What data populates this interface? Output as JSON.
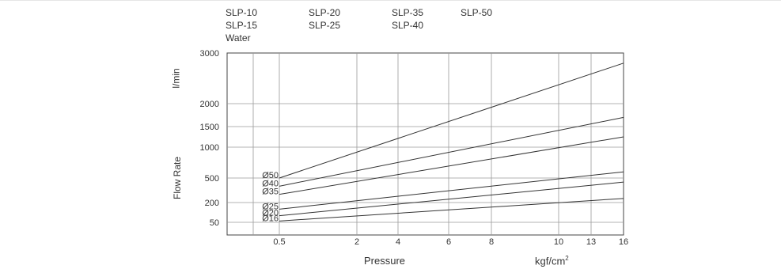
{
  "legend": {
    "columns": [
      [
        "SLP-10",
        "SLP-15",
        "Water"
      ],
      [
        "SLP-20",
        "SLP-25"
      ],
      [
        "SLP-35",
        "SLP-40"
      ],
      [
        "SLP-50"
      ]
    ]
  },
  "chart_data": {
    "type": "line",
    "xlabel": "Pressure",
    "xunit": "kgf/cm",
    "xunit_sup": "2",
    "ylabel_top": "l/min",
    "ylabel": "Flow Rate",
    "x_ticks": [
      "0.5",
      "2",
      "4",
      "6",
      "8",
      "10",
      "13",
      "16"
    ],
    "y_ticks": [
      "3000",
      "2000",
      "1500",
      "1000",
      "500",
      "200",
      "50"
    ],
    "grid": true,
    "series": [
      {
        "name": "Ø50",
        "start": {
          "x": 0.5,
          "y": 500
        },
        "end": {
          "x": 16,
          "y": 2800
        }
      },
      {
        "name": "Ø40",
        "start": {
          "x": 0.5,
          "y": 400
        },
        "end": {
          "x": 16,
          "y": 1700
        }
      },
      {
        "name": "Ø35",
        "start": {
          "x": 0.5,
          "y": 300
        },
        "end": {
          "x": 16,
          "y": 1250
        }
      },
      {
        "name": "Ø25",
        "start": {
          "x": 0.5,
          "y": 150
        },
        "end": {
          "x": 16,
          "y": 600
        }
      },
      {
        "name": "Ø20",
        "start": {
          "x": 0.5,
          "y": 100
        },
        "end": {
          "x": 16,
          "y": 450
        }
      },
      {
        "name": "Ø16",
        "start": {
          "x": 0.5,
          "y": 60
        },
        "end": {
          "x": 16,
          "y": 250
        }
      }
    ]
  }
}
